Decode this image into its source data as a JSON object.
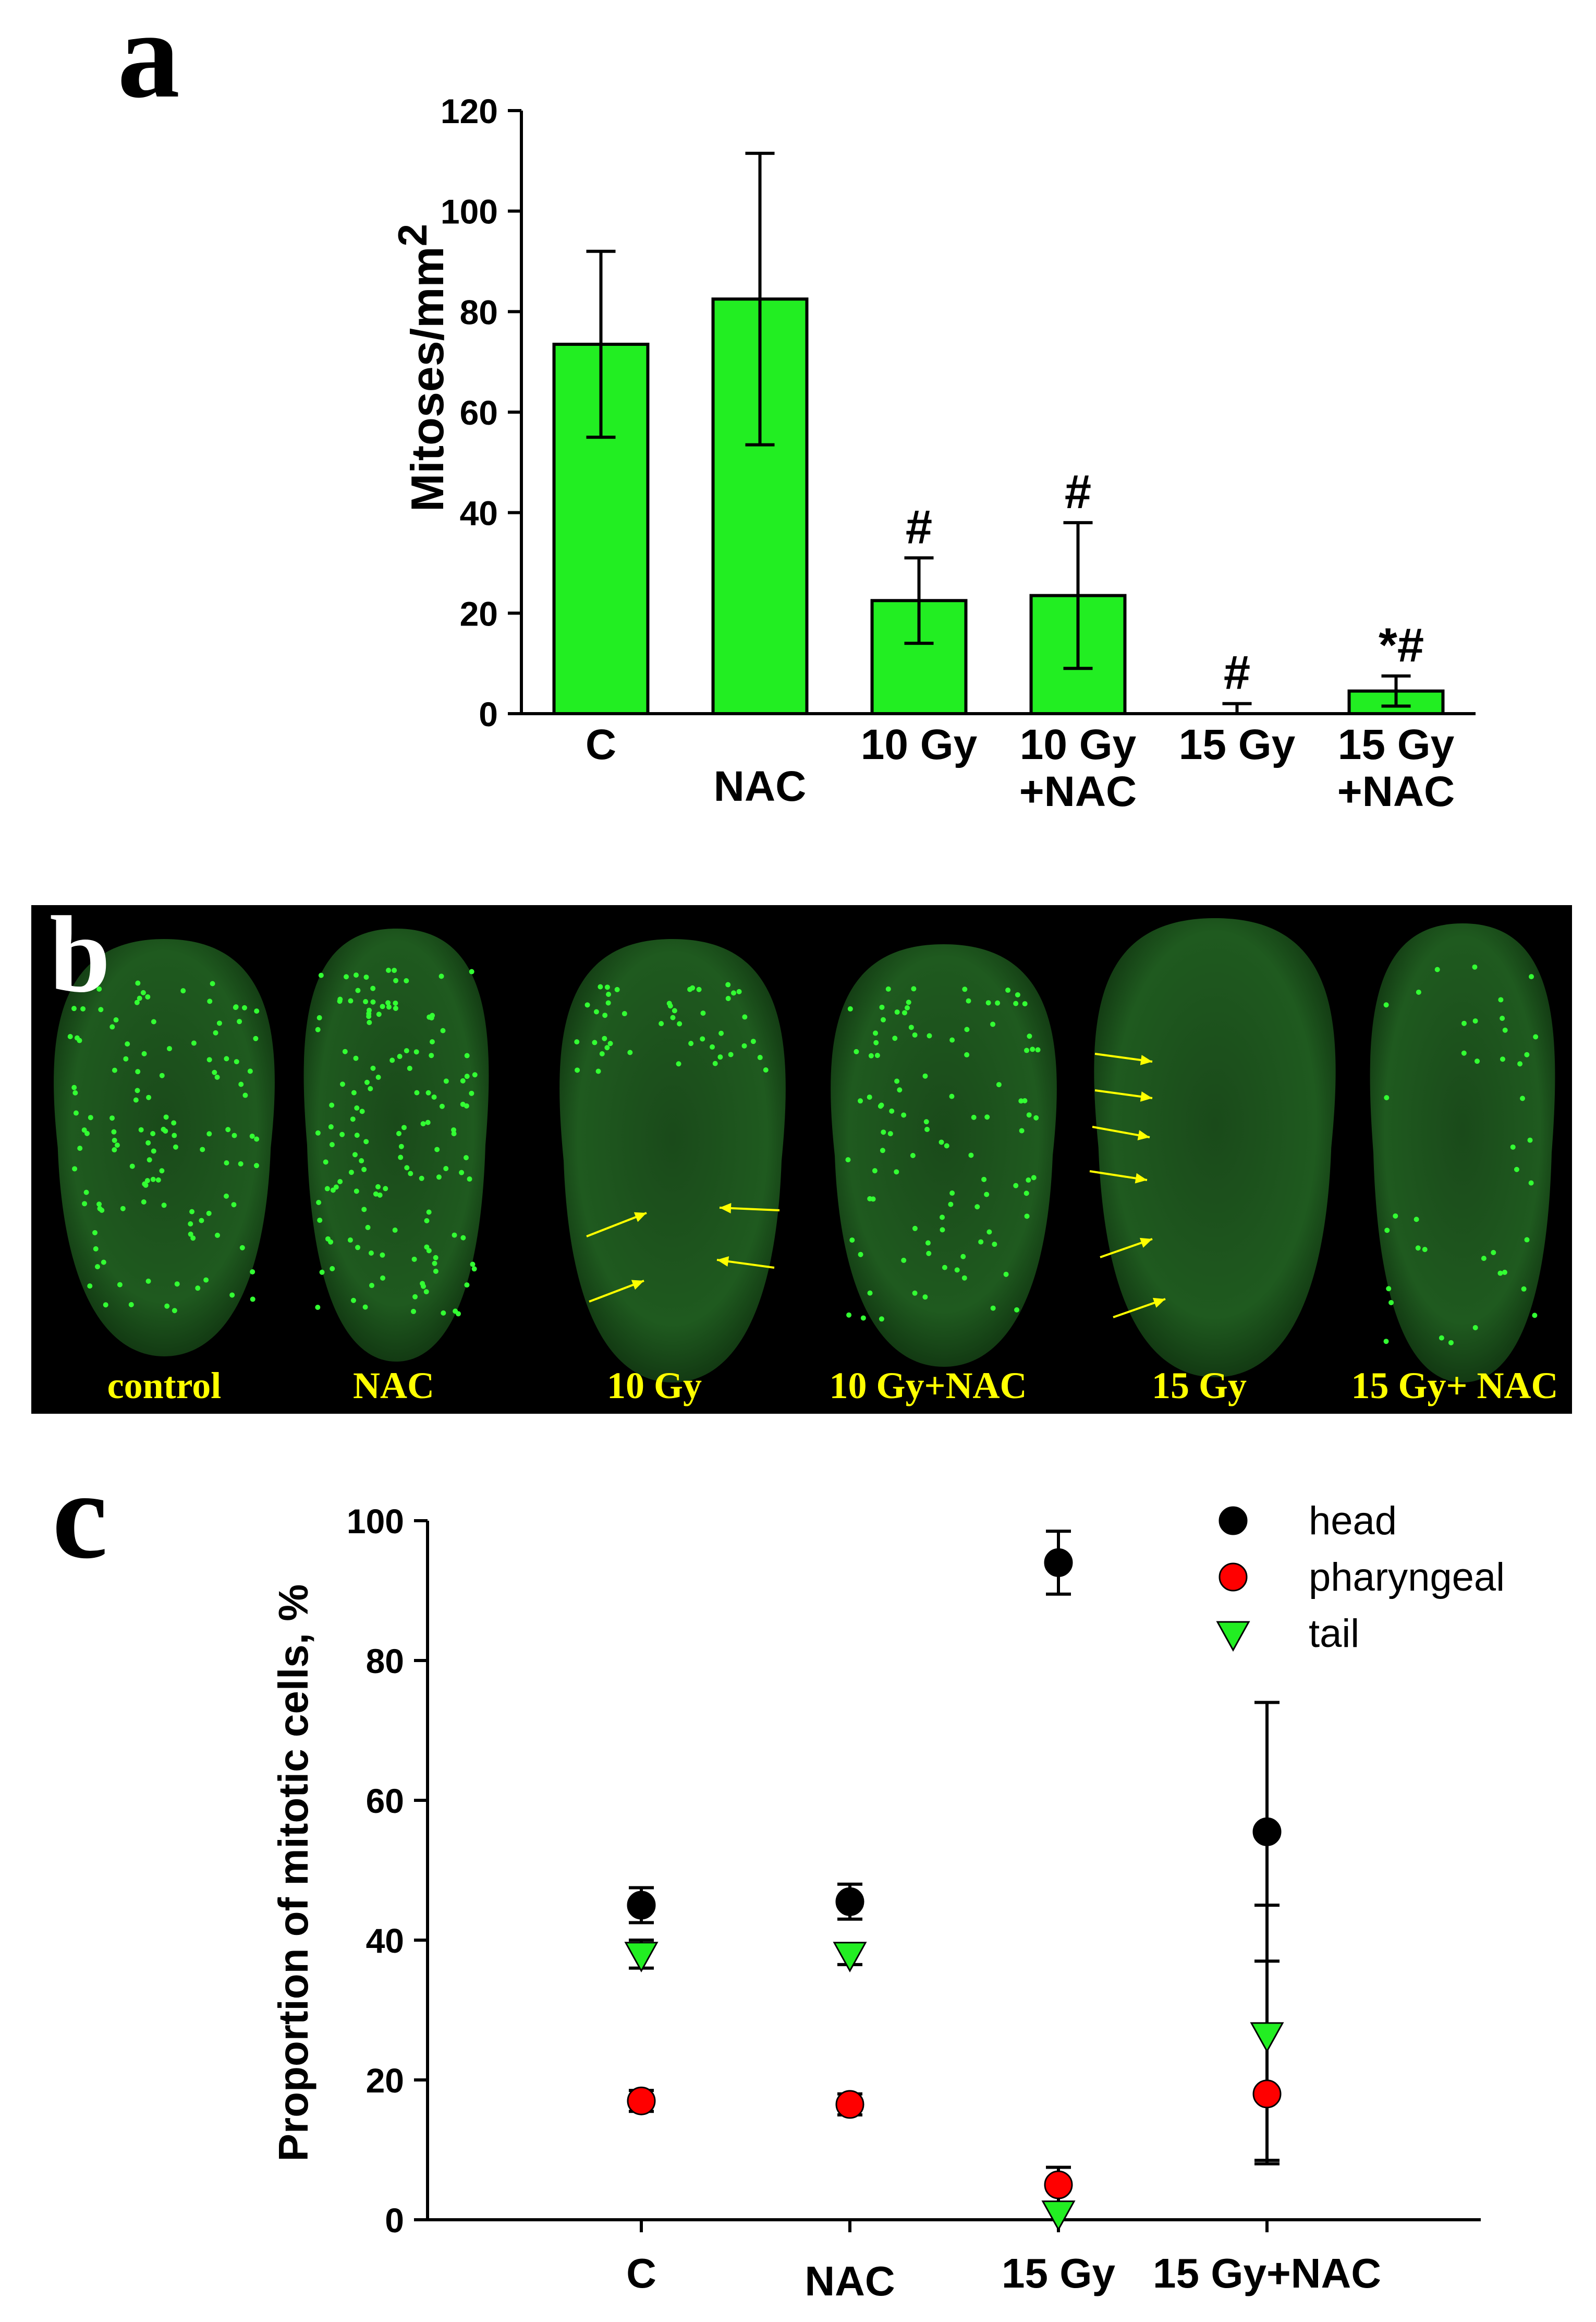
{
  "panel_a": {
    "letter": "a",
    "chart_data": {
      "type": "bar",
      "categories": [
        "C",
        "NAC",
        "10 Gy",
        "10 Gy\n+NAC",
        "15 Gy",
        "15 Gy\n+NAC"
      ],
      "values": [
        73.5,
        82.5,
        22.5,
        23.5,
        0,
        4.5
      ],
      "errors": [
        18.5,
        29,
        8.5,
        14.5,
        2,
        3
      ],
      "markers": [
        "",
        "",
        "#",
        "#",
        "#",
        "*#"
      ],
      "ylabel": "Mitoses/mm",
      "ylabel_superscript": "2",
      "ylim": [
        0,
        120
      ],
      "yticks": [
        0,
        20,
        40,
        60,
        80,
        100,
        120
      ],
      "bar_color": "#22ee22"
    }
  },
  "panel_b": {
    "letter": "b",
    "labels": [
      "control",
      "NAC",
      "10 Gy",
      "10 Gy+NAC",
      "15 Gy",
      "15 Gy+ NAC"
    ],
    "label_color": "#ffff00",
    "background_color": "#000000",
    "dot_color": "#33ff33",
    "arrow_color": "#ffff00"
  },
  "panel_c": {
    "letter": "c",
    "chart_data": {
      "type": "scatter",
      "categories": [
        "C",
        "NAC",
        "15 Gy",
        "15 Gy+NAC"
      ],
      "series": [
        {
          "name": "head",
          "marker": "circle",
          "color": "#000000",
          "values": [
            45,
            45.5,
            94,
            55.5
          ],
          "errors": [
            2.5,
            2.5,
            4.5,
            18.5
          ]
        },
        {
          "name": "pharyngeal",
          "marker": "circle",
          "color": "#ff0000",
          "values": [
            17,
            16.5,
            5,
            18
          ],
          "errors": [
            1.5,
            1.5,
            2.5,
            9.5
          ]
        },
        {
          "name": "tail",
          "marker": "triangle-down",
          "color": "#22ee22",
          "values": [
            38,
            38,
            1,
            26.5
          ],
          "errors": [
            2,
            1.5,
            1,
            18.5
          ]
        }
      ],
      "ylabel": "Proportion of mitotic cells, %",
      "ylim": [
        0,
        100
      ],
      "yticks": [
        0,
        20,
        40,
        60,
        80,
        100
      ],
      "legend_position": "top-right"
    }
  }
}
